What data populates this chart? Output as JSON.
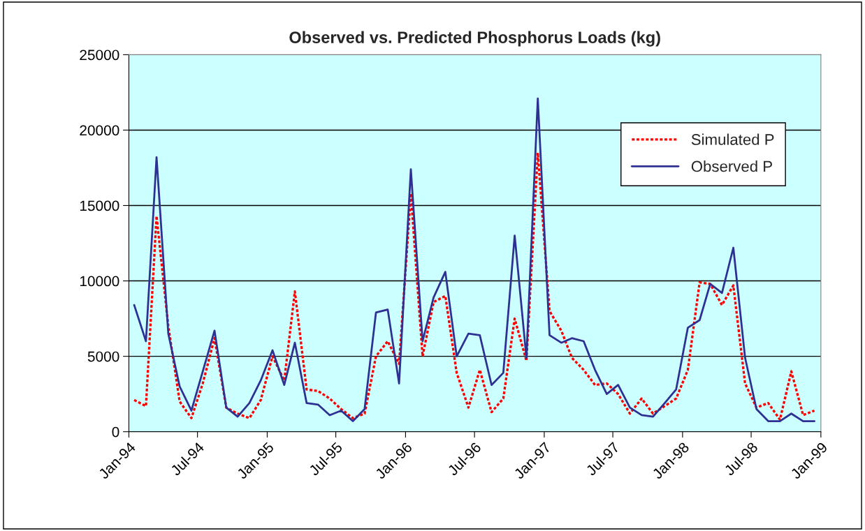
{
  "chart_data": {
    "type": "line",
    "title": "Observed vs. Predicted Phosphorus Loads (kg)",
    "x": [
      "1994-01-15",
      "1994-02-15",
      "1994-03-15",
      "1994-04-15",
      "1994-05-15",
      "1994-06-15",
      "1994-07-15",
      "1994-08-15",
      "1994-09-15",
      "1994-10-15",
      "1994-11-15",
      "1994-12-15",
      "1995-01-15",
      "1995-02-15",
      "1995-03-15",
      "1995-04-15",
      "1995-05-15",
      "1995-06-15",
      "1995-07-15",
      "1995-08-15",
      "1995-09-15",
      "1995-10-15",
      "1995-11-15",
      "1995-12-15",
      "1996-01-15",
      "1996-02-15",
      "1996-03-15",
      "1996-04-15",
      "1996-05-15",
      "1996-06-15",
      "1996-07-15",
      "1996-08-15",
      "1996-09-15",
      "1996-10-15",
      "1996-11-15",
      "1996-12-15",
      "1997-01-15",
      "1997-02-15",
      "1997-03-15",
      "1997-04-15",
      "1997-05-15",
      "1997-06-15",
      "1997-07-15",
      "1997-08-15",
      "1997-09-15",
      "1997-10-15",
      "1997-11-15",
      "1997-12-15",
      "1998-01-15",
      "1998-02-15",
      "1998-03-15",
      "1998-04-15",
      "1998-05-15",
      "1998-06-15",
      "1998-07-15",
      "1998-08-15",
      "1998-09-15",
      "1998-10-15",
      "1998-11-15",
      "1998-12-15"
    ],
    "series": [
      {
        "name": "Simulated P",
        "color": "#ff0000",
        "line_style": "dotted",
        "values": [
          2100,
          1700,
          14300,
          7000,
          2000,
          900,
          3200,
          6200,
          1600,
          1200,
          900,
          2100,
          5000,
          3400,
          9300,
          2800,
          2700,
          2200,
          1500,
          900,
          1200,
          5000,
          6000,
          4500,
          15800,
          5000,
          8600,
          9000,
          3900,
          1600,
          4100,
          1300,
          2200,
          7500,
          4700,
          18500,
          8000,
          6700,
          4900,
          4100,
          3100,
          3200,
          2500,
          1200,
          2200,
          1200,
          1700,
          2200,
          4100,
          9900,
          9800,
          8400,
          9700,
          3200,
          1600,
          1900,
          800,
          4000,
          1100,
          1400
        ]
      },
      {
        "name": "Observed P",
        "color": "#2e3192",
        "line_style": "solid",
        "values": [
          8400,
          6000,
          18200,
          6500,
          3000,
          1400,
          4000,
          6700,
          1600,
          1000,
          1900,
          3400,
          5400,
          3100,
          5900,
          1900,
          1800,
          1100,
          1400,
          700,
          1500,
          7900,
          8100,
          3200,
          17400,
          6000,
          8900,
          10600,
          5000,
          6500,
          6400,
          3100,
          3900,
          13000,
          4900,
          22100,
          6400,
          5900,
          6200,
          6000,
          4100,
          2500,
          3100,
          1600,
          1100,
          1000,
          1900,
          2800,
          6900,
          7400,
          9800,
          9200,
          12200,
          4900,
          1500,
          700,
          700,
          1200,
          700,
          700
        ]
      }
    ],
    "xlim": [
      "1994-01-01",
      "1999-01-01"
    ],
    "xticks": [
      {
        "value": "1994-01-01",
        "label": "Jan-94"
      },
      {
        "value": "1994-07-01",
        "label": "Jul-94"
      },
      {
        "value": "1995-01-01",
        "label": "Jan-95"
      },
      {
        "value": "1995-07-01",
        "label": "Jul-95"
      },
      {
        "value": "1996-01-01",
        "label": "Jan-96"
      },
      {
        "value": "1996-07-01",
        "label": "Jul-96"
      },
      {
        "value": "1997-01-01",
        "label": "Jan-97"
      },
      {
        "value": "1997-07-01",
        "label": "Jul-97"
      },
      {
        "value": "1998-01-01",
        "label": "Jan-98"
      },
      {
        "value": "1998-07-01",
        "label": "Jul-98"
      },
      {
        "value": "1999-01-01",
        "label": "Jan-99"
      }
    ],
    "ylim": [
      0,
      25000
    ],
    "yticks": [
      0,
      5000,
      10000,
      15000,
      20000,
      25000
    ],
    "grid": "y",
    "legend": "top right",
    "marker": "none"
  }
}
